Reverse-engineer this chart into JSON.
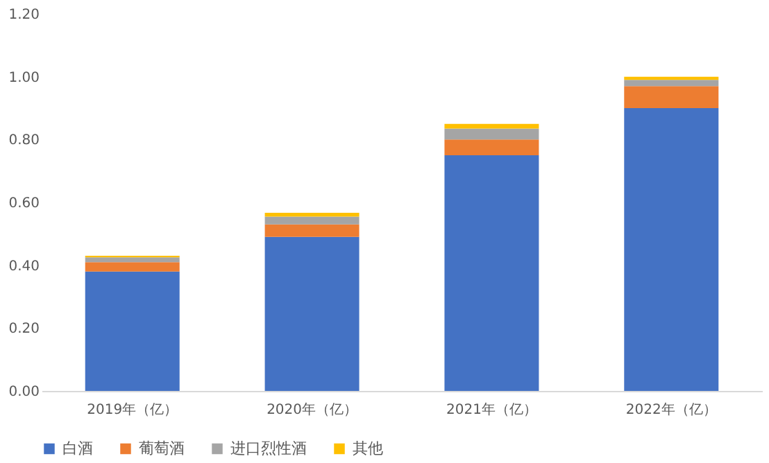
{
  "chart_data": {
    "type": "bar",
    "stacked": true,
    "categories": [
      "2019年（亿）",
      "2020年（亿）",
      "2021年（亿）",
      "2022年（亿）"
    ],
    "series": [
      {
        "name": "白酒",
        "color": "#4472c4",
        "values": [
          0.38,
          0.49,
          0.75,
          0.9
        ]
      },
      {
        "name": "葡萄酒",
        "color": "#ed7d31",
        "values": [
          0.03,
          0.04,
          0.05,
          0.07
        ]
      },
      {
        "name": "进口烈性酒",
        "color": "#a5a5a5",
        "values": [
          0.015,
          0.025,
          0.035,
          0.02
        ]
      },
      {
        "name": "其他",
        "color": "#ffc000",
        "values": [
          0.005,
          0.012,
          0.015,
          0.01
        ]
      }
    ],
    "ylim": [
      0,
      1.2
    ],
    "yticks": [
      {
        "value": 0,
        "label": "0.00"
      },
      {
        "value": 0.2,
        "label": "0.20"
      },
      {
        "value": 0.4,
        "label": "0.40"
      },
      {
        "value": 0.6,
        "label": "0.60"
      },
      {
        "value": 0.8,
        "label": "0.80"
      },
      {
        "value": 1.0,
        "label": "1.00"
      },
      {
        "value": 1.2,
        "label": "1.20"
      }
    ],
    "grid": false,
    "legend": "bottom"
  }
}
